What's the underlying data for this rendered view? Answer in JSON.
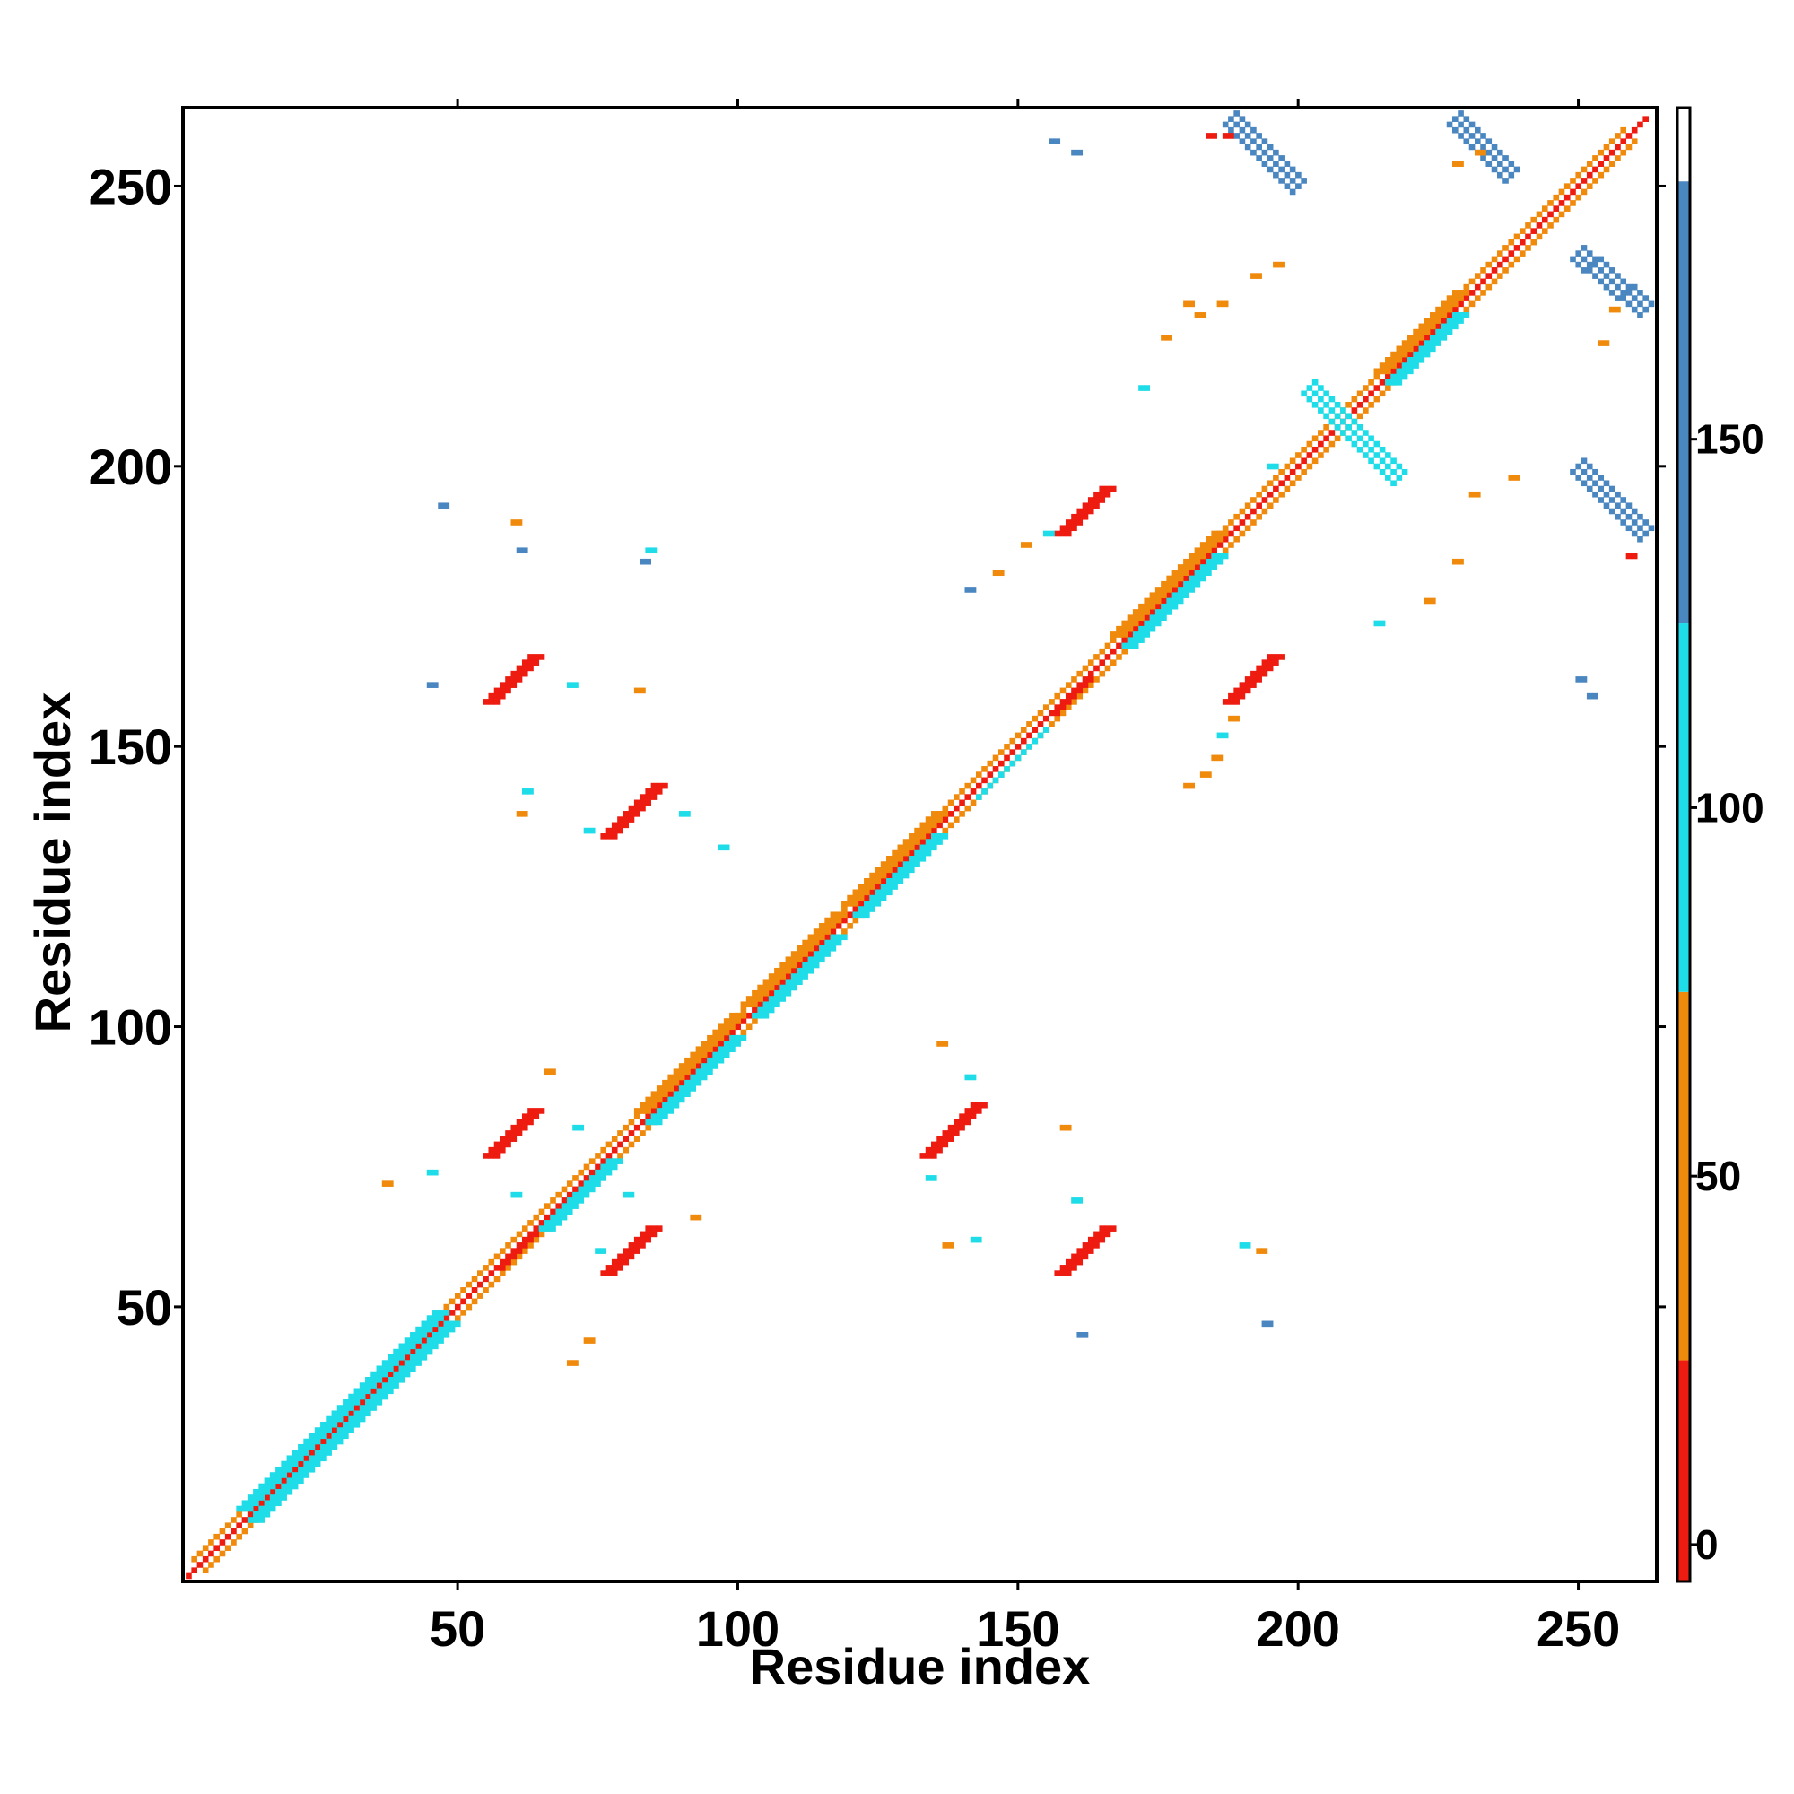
{
  "chart_data": {
    "type": "heatmap",
    "title": "",
    "xlabel": "Residue index",
    "ylabel": "Residue index",
    "xlim": [
      1,
      264
    ],
    "ylim": [
      1,
      264
    ],
    "x_ticks": [
      50,
      100,
      150,
      200,
      250
    ],
    "y_ticks": [
      50,
      100,
      150,
      200,
      250
    ],
    "grid": false,
    "colorbar": {
      "ticks": [
        0,
        50,
        100,
        150
      ],
      "range": [
        -5,
        195
      ],
      "bands": [
        {
          "from": -5,
          "to": 25,
          "color": "#ee1b10"
        },
        {
          "from": 25,
          "to": 75,
          "color": "#f08a0c"
        },
        {
          "from": 75,
          "to": 125,
          "color": "#1fdde8"
        },
        {
          "from": 125,
          "to": 185,
          "color": "#4a86c0"
        },
        {
          "from": 185,
          "to": 195,
          "color": "#ffffff"
        }
      ]
    },
    "colors": {
      "red": "#ee1b10",
      "orange": "#f08a0c",
      "cyan": "#1fdde8",
      "blue": "#4a86c0"
    },
    "contact_segments": [
      {
        "i": [
          2,
          262
        ],
        "j": [
          2,
          262
        ],
        "color": "red",
        "width": 1.5,
        "type": "main diagonal"
      },
      {
        "i": [
          5,
          260
        ],
        "j": [
          3,
          258
        ],
        "color": "orange",
        "width": 1.5
      },
      {
        "i": [
          3,
          258
        ],
        "j": [
          5,
          260
        ],
        "color": "orange",
        "width": 1.5
      },
      {
        "i": [
          14,
          49
        ],
        "j": [
          12,
          47
        ],
        "color": "cyan",
        "width": 2
      },
      {
        "i": [
          12,
          47
        ],
        "j": [
          14,
          49
        ],
        "color": "cyan",
        "width": 2
      },
      {
        "i": [
          85,
          100
        ],
        "j": [
          83,
          98
        ],
        "color": "cyan",
        "width": 2
      },
      {
        "i": [
          83,
          100
        ],
        "j": [
          85,
          102
        ],
        "color": "orange",
        "width": 2
      },
      {
        "i": [
          104,
          118
        ],
        "j": [
          102,
          116
        ],
        "color": "cyan",
        "width": 2
      },
      {
        "i": [
          102,
          118
        ],
        "j": [
          104,
          120
        ],
        "color": "orange",
        "width": 2
      },
      {
        "i": [
          122,
          136
        ],
        "j": [
          120,
          134
        ],
        "color": "cyan",
        "width": 2
      },
      {
        "i": [
          120,
          136
        ],
        "j": [
          122,
          138
        ],
        "color": "orange",
        "width": 2
      },
      {
        "i": [
          170,
          186
        ],
        "j": [
          168,
          184
        ],
        "color": "cyan",
        "width": 2
      },
      {
        "i": [
          168,
          186
        ],
        "j": [
          170,
          188
        ],
        "color": "orange",
        "width": 2
      },
      {
        "i": [
          217,
          229
        ],
        "j": [
          215,
          227
        ],
        "color": "cyan",
        "width": 2
      },
      {
        "i": [
          215,
          229
        ],
        "j": [
          217,
          231
        ],
        "color": "orange",
        "width": 2
      },
      {
        "i": [
          66,
          78
        ],
        "j": [
          64,
          76
        ],
        "color": "cyan",
        "width": 2
      },
      {
        "i": [
          143,
          155
        ],
        "j": [
          141,
          153
        ],
        "color": "cyan",
        "width": 1.5
      },
      {
        "i": [
          58,
          64
        ],
        "j": [
          57,
          63
        ],
        "color": "red",
        "width": 1.5
      },
      {
        "i": [
          157,
          163
        ],
        "j": [
          156,
          162
        ],
        "color": "red",
        "width": 1.5
      },
      {
        "i": [
          56,
          64
        ],
        "j": [
          77,
          85
        ],
        "color": "red",
        "width": 2.5
      },
      {
        "i": [
          77,
          85
        ],
        "j": [
          56,
          64
        ],
        "color": "red",
        "width": 2.5
      },
      {
        "i": [
          56,
          64
        ],
        "j": [
          158,
          166
        ],
        "color": "red",
        "width": 2.5
      },
      {
        "i": [
          158,
          166
        ],
        "j": [
          56,
          64
        ],
        "color": "red",
        "width": 2.5
      },
      {
        "i": [
          77,
          86
        ],
        "j": [
          134,
          143
        ],
        "color": "red",
        "width": 2.5
      },
      {
        "i": [
          134,
          143
        ],
        "j": [
          77,
          86
        ],
        "color": "red",
        "width": 2.5
      },
      {
        "i": [
          158,
          166
        ],
        "j": [
          188,
          196
        ],
        "color": "red",
        "width": 2.5
      },
      {
        "i": [
          188,
          196
        ],
        "j": [
          158,
          166
        ],
        "color": "red",
        "width": 2.5
      },
      {
        "i": [
          188,
          200
        ],
        "j": [
          262,
          250
        ],
        "color": "blue",
        "width": 3
      },
      {
        "i": [
          202,
          218
        ],
        "j": [
          214,
          198
        ],
        "color": "cyan",
        "width": 3
      },
      {
        "i": [
          228,
          238
        ],
        "j": [
          262,
          252
        ],
        "color": "blue",
        "width": 3
      },
      {
        "i": [
          250,
          262
        ],
        "j": [
          238,
          228
        ],
        "color": "blue",
        "width": 3
      },
      {
        "i": [
          250,
          262
        ],
        "j": [
          200,
          188
        ],
        "color": "blue",
        "width": 3
      }
    ],
    "scattered_contacts": [
      {
        "i": 47,
        "j": 193,
        "color": "blue"
      },
      {
        "i": 60,
        "j": 190,
        "color": "orange"
      },
      {
        "i": 61,
        "j": 185,
        "color": "blue"
      },
      {
        "i": 45,
        "j": 161,
        "color": "blue"
      },
      {
        "i": 70,
        "j": 161,
        "color": "cyan"
      },
      {
        "i": 82,
        "j": 160,
        "color": "orange"
      },
      {
        "i": 62,
        "j": 142,
        "color": "cyan"
      },
      {
        "i": 61,
        "j": 138,
        "color": "orange"
      },
      {
        "i": 73,
        "j": 135,
        "color": "cyan"
      },
      {
        "i": 90,
        "j": 138,
        "color": "cyan"
      },
      {
        "i": 97,
        "j": 132,
        "color": "cyan"
      },
      {
        "i": 66,
        "j": 92,
        "color": "orange"
      },
      {
        "i": 37,
        "j": 72,
        "color": "orange"
      },
      {
        "i": 45,
        "j": 74,
        "color": "cyan"
      },
      {
        "i": 60,
        "j": 70,
        "color": "cyan"
      },
      {
        "i": 71,
        "j": 82,
        "color": "cyan"
      },
      {
        "i": 80,
        "j": 70,
        "color": "cyan"
      },
      {
        "i": 92,
        "j": 66,
        "color": "orange"
      },
      {
        "i": 75,
        "j": 60,
        "color": "cyan"
      },
      {
        "i": 70,
        "j": 40,
        "color": "orange"
      },
      {
        "i": 73,
        "j": 44,
        "color": "orange"
      },
      {
        "i": 136,
        "j": 97,
        "color": "orange"
      },
      {
        "i": 141,
        "j": 91,
        "color": "cyan"
      },
      {
        "i": 134,
        "j": 73,
        "color": "cyan"
      },
      {
        "i": 137,
        "j": 61,
        "color": "orange"
      },
      {
        "i": 142,
        "j": 62,
        "color": "cyan"
      },
      {
        "i": 158,
        "j": 82,
        "color": "orange"
      },
      {
        "i": 160,
        "j": 69,
        "color": "cyan"
      },
      {
        "i": 161,
        "j": 45,
        "color": "blue"
      },
      {
        "i": 194,
        "j": 47,
        "color": "blue"
      },
      {
        "i": 190,
        "j": 61,
        "color": "cyan"
      },
      {
        "i": 193,
        "j": 60,
        "color": "orange"
      },
      {
        "i": 180,
        "j": 143,
        "color": "orange"
      },
      {
        "i": 183,
        "j": 145,
        "color": "orange"
      },
      {
        "i": 146,
        "j": 181,
        "color": "orange"
      },
      {
        "i": 141,
        "j": 178,
        "color": "blue"
      },
      {
        "i": 155,
        "j": 188,
        "color": "cyan"
      },
      {
        "i": 151,
        "j": 186,
        "color": "orange"
      },
      {
        "i": 188,
        "j": 155,
        "color": "orange"
      },
      {
        "i": 186,
        "j": 152,
        "color": "cyan"
      },
      {
        "i": 185,
        "j": 148,
        "color": "orange"
      },
      {
        "i": 172,
        "j": 214,
        "color": "cyan"
      },
      {
        "i": 176,
        "j": 223,
        "color": "orange"
      },
      {
        "i": 182,
        "j": 227,
        "color": "orange"
      },
      {
        "i": 180,
        "j": 229,
        "color": "orange"
      },
      {
        "i": 186,
        "j": 229,
        "color": "orange"
      },
      {
        "i": 192,
        "j": 234,
        "color": "orange"
      },
      {
        "i": 196,
        "j": 236,
        "color": "orange"
      },
      {
        "i": 195,
        "j": 200,
        "color": "cyan"
      },
      {
        "i": 214,
        "j": 172,
        "color": "cyan"
      },
      {
        "i": 223,
        "j": 176,
        "color": "orange"
      },
      {
        "i": 228,
        "j": 183,
        "color": "orange"
      },
      {
        "i": 231,
        "j": 195,
        "color": "orange"
      },
      {
        "i": 238,
        "j": 198,
        "color": "orange"
      },
      {
        "i": 250,
        "j": 162,
        "color": "blue"
      },
      {
        "i": 252,
        "j": 159,
        "color": "blue"
      },
      {
        "i": 232,
        "j": 256,
        "color": "orange"
      },
      {
        "i": 228,
        "j": 254,
        "color": "orange"
      },
      {
        "i": 256,
        "j": 228,
        "color": "orange"
      },
      {
        "i": 254,
        "j": 222,
        "color": "orange"
      },
      {
        "i": 259,
        "j": 184,
        "color": "red"
      },
      {
        "i": 184,
        "j": 259,
        "color": "red"
      },
      {
        "i": 160,
        "j": 256,
        "color": "blue"
      },
      {
        "i": 156,
        "j": 258,
        "color": "blue"
      },
      {
        "i": 187,
        "j": 259,
        "color": "red"
      },
      {
        "i": 83,
        "j": 183,
        "color": "blue"
      },
      {
        "i": 84,
        "j": 185,
        "color": "cyan"
      }
    ]
  }
}
